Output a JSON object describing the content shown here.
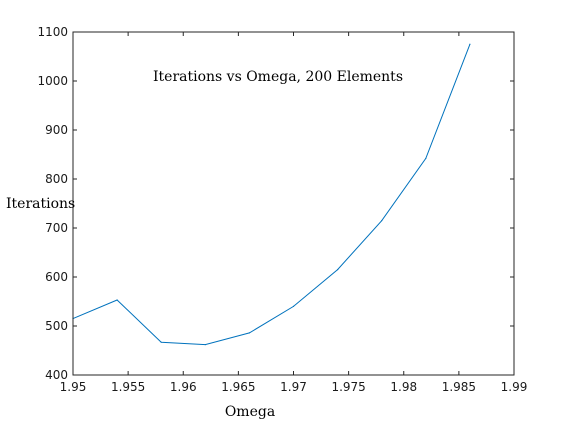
{
  "chart_data": {
    "type": "line",
    "title": "Iterations vs Omega, 200 Elements",
    "xlabel": "Omega",
    "ylabel": "Iterations",
    "xlim": [
      1.95,
      1.99
    ],
    "ylim": [
      400,
      1100
    ],
    "xticks": [
      "1.95",
      "1.955",
      "1.96",
      "1.965",
      "1.97",
      "1.975",
      "1.98",
      "1.985",
      "1.99"
    ],
    "yticks": [
      "400",
      "500",
      "600",
      "700",
      "800",
      "900",
      "1000",
      "1100"
    ],
    "grid": false,
    "series": [
      {
        "color": "#0072BD",
        "x": [
          1.95,
          1.954,
          1.958,
          1.962,
          1.966,
          1.97,
          1.974,
          1.978,
          1.982,
          1.986
        ],
        "y": [
          515,
          553,
          467,
          462,
          486,
          540,
          615,
          715,
          842,
          1075
        ]
      }
    ]
  }
}
